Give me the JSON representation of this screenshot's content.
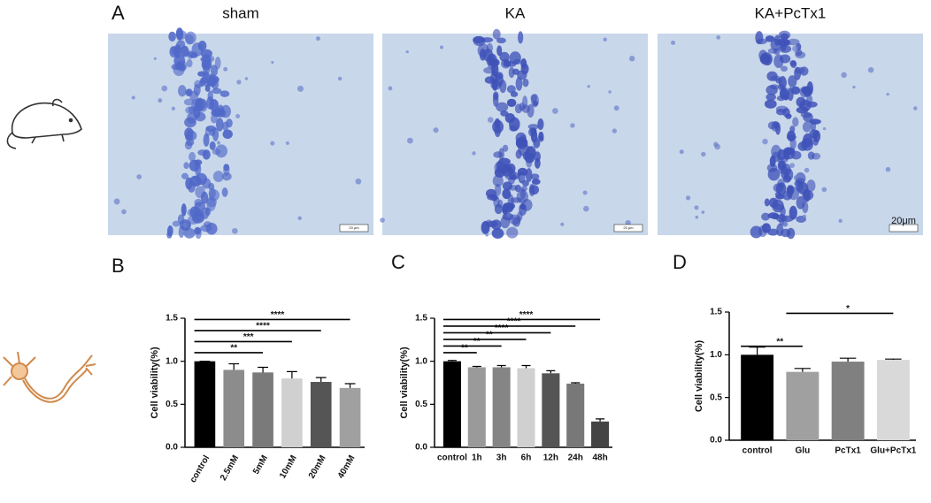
{
  "panel_labels": [
    "A",
    "B",
    "C",
    "D"
  ],
  "micrographs": [
    {
      "title": "sham",
      "scale": "20 μm"
    },
    {
      "title": "KA",
      "scale": "20 μm"
    },
    {
      "title": "KA+PcTx1",
      "scale": "20μm"
    }
  ],
  "chart_data": [
    {
      "type": "bar",
      "ylabel": "Cell viability(%)",
      "categories": [
        "control",
        "2.5mM",
        "5mM",
        "10mM",
        "20mM",
        "40mM"
      ],
      "values": [
        1.0,
        0.9,
        0.87,
        0.8,
        0.76,
        0.69
      ],
      "errors": [
        0,
        0.07,
        0.06,
        0.08,
        0.05,
        0.05
      ],
      "colors": [
        "#000000",
        "#8c8c8c",
        "#7a7a7a",
        "#d0d0d0",
        "#555555",
        "#a0a0a0"
      ],
      "ylim": [
        0,
        1.5
      ],
      "yticks": [
        {
          "value": 0,
          "label": "0.0"
        },
        0.5,
        {
          "value": 1,
          "label": "1.0"
        },
        1.5
      ],
      "rotate_labels": true,
      "comparisons": [
        {
          "from": "control",
          "to": "5mM",
          "label": "**"
        },
        {
          "from": "control",
          "to": "10mM",
          "label": "***"
        },
        {
          "from": "control",
          "to": "20mM",
          "label": "****"
        },
        {
          "from": "control",
          "to": "40mM",
          "label": "****"
        }
      ]
    },
    {
      "type": "bar",
      "ylabel": "Cell viability(%)",
      "categories": [
        "control",
        "1h",
        "3h",
        "6h",
        "12h",
        "24h",
        "48h"
      ],
      "values": [
        1.0,
        0.93,
        0.93,
        0.92,
        0.86,
        0.74,
        0.3
      ],
      "errors": [
        0.01,
        0.01,
        0.02,
        0.03,
        0.03,
        0.01,
        0.03
      ],
      "colors": [
        "#000000",
        "#9a9a9a",
        "#858585",
        "#d0d0d0",
        "#555555",
        "#787878",
        "#444444"
      ],
      "ylim": [
        0,
        1.5
      ],
      "yticks": [
        {
          "value": 0,
          "label": "0.0"
        },
        0.5,
        {
          "value": 1,
          "label": "1.0"
        },
        1.5
      ],
      "rotate_labels": false,
      "comparisons": [
        {
          "from": "control",
          "to": "1h",
          "label": "**"
        },
        {
          "from": "control",
          "to": "3h",
          "label": "**"
        },
        {
          "from": "control",
          "to": "6h",
          "label": "**"
        },
        {
          "from": "control",
          "to": "12h",
          "label": "****"
        },
        {
          "from": "control",
          "to": "24h",
          "label": "****"
        },
        {
          "from": "control",
          "to": "48h",
          "label": "****"
        }
      ]
    },
    {
      "type": "bar",
      "ylabel": "Cell viability(%)",
      "categories": [
        "control",
        "Glu",
        "PcTx1",
        "Glu+PcTx1"
      ],
      "values": [
        1.0,
        0.8,
        0.92,
        0.94
      ],
      "errors": [
        0.09,
        0.04,
        0.04,
        0.01
      ],
      "colors": [
        "#000000",
        "#a0a0a0",
        "#808080",
        "#d9d9d9"
      ],
      "ylim": [
        0,
        1.5
      ],
      "yticks": [
        {
          "value": 0,
          "label": "0.0"
        },
        0.5,
        {
          "value": 1,
          "label": "1.0"
        },
        1.5
      ],
      "rotate_labels": false,
      "comparisons": [
        {
          "from": "control",
          "to": "Glu",
          "label": "**"
        },
        {
          "from": "Glu",
          "to": "Glu+PcTx1",
          "label": "*"
        }
      ]
    }
  ]
}
